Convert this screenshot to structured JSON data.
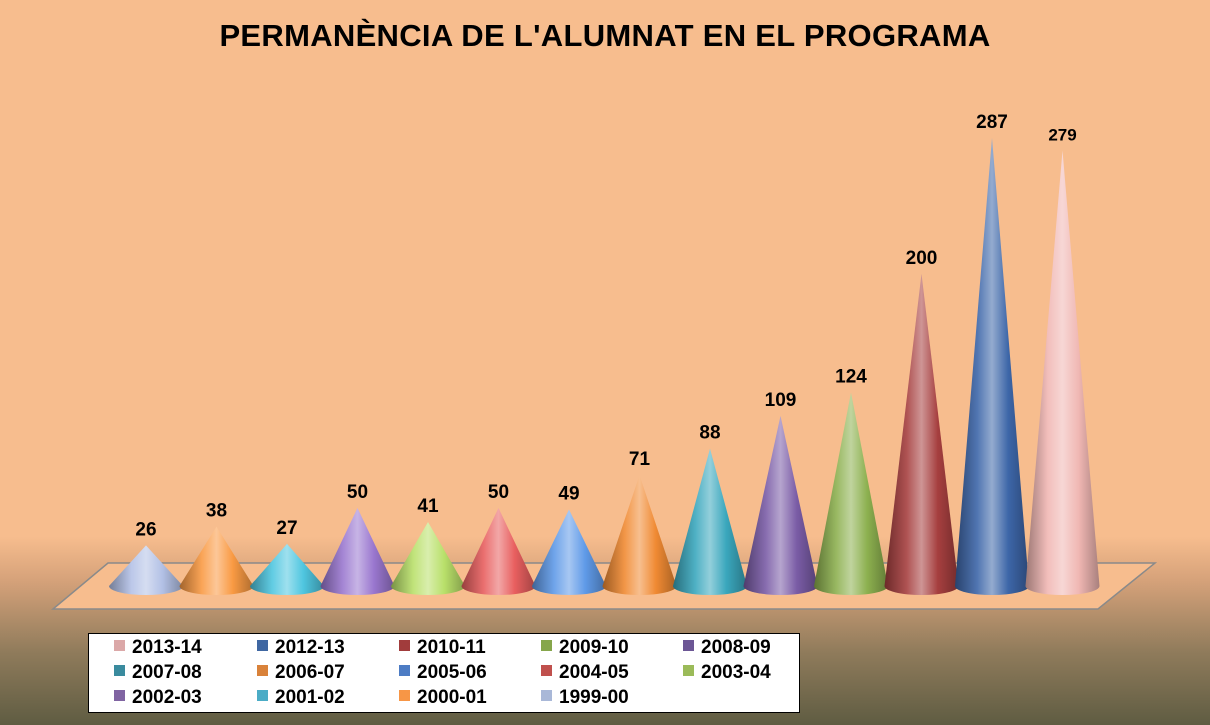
{
  "chart_data": {
    "type": "bar",
    "style": "3d-cone",
    "title": "PERMANÈNCIA DE L'ALUMNAT EN EL PROGRAMA",
    "categories": [
      "1999-00",
      "2000-01",
      "2001-02",
      "2002-03",
      "2003-04",
      "2004-05",
      "2005-06",
      "2006-07",
      "2007-08",
      "2008-09",
      "2009-10",
      "2010-11",
      "2012-13",
      "2013-14"
    ],
    "values": [
      26,
      38,
      27,
      50,
      41,
      50,
      49,
      71,
      88,
      109,
      124,
      200,
      287,
      279
    ],
    "colors": [
      "#b3c1e6",
      "#f99a43",
      "#4fc6e0",
      "#9a77cf",
      "#b9e06a",
      "#e85f5f",
      "#5f9ae8",
      "#f08a33",
      "#3aa7bd",
      "#7a5ca6",
      "#8cb04f",
      "#a63f3f",
      "#3d66a8",
      "#f0b7b3"
    ],
    "ylim": [
      0,
      300
    ],
    "grid": false,
    "legend": {
      "position": "bottom",
      "items": [
        {
          "label": "2013-14",
          "color": "#dba8a8"
        },
        {
          "label": "2012-13",
          "color": "#3f67a2"
        },
        {
          "label": "2010-11",
          "color": "#a13c3c"
        },
        {
          "label": "2009-10",
          "color": "#86a64b"
        },
        {
          "label": "2008-09",
          "color": "#6c5695"
        },
        {
          "label": "2007-08",
          "color": "#3a8b9e"
        },
        {
          "label": "2006-07",
          "color": "#d9823a"
        },
        {
          "label": "2005-06",
          "color": "#4d7cc4"
        },
        {
          "label": "2004-05",
          "color": "#c0504d"
        },
        {
          "label": "2003-04",
          "color": "#9bbb59"
        },
        {
          "label": "2002-03",
          "color": "#8064a2"
        },
        {
          "label": "2001-02",
          "color": "#4bacc6"
        },
        {
          "label": "2000-01",
          "color": "#f79646"
        },
        {
          "label": "1999-00",
          "color": "#a9b8d8"
        }
      ]
    }
  }
}
